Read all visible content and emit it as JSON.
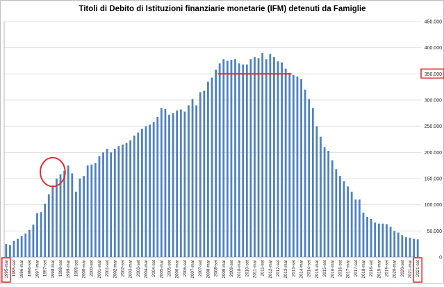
{
  "chart_data": {
    "type": "bar",
    "title": "Titoli di Debito di Istituzioni finanziarie monetarie (IFM)  detenuti da Famiglie",
    "xlabel": "",
    "ylabel": "",
    "ylim": [
      0,
      450000
    ],
    "yticks": [
      "0",
      "50.000",
      "100.000",
      "150.000",
      "200.000",
      "250.000",
      "300.000",
      "350.000",
      "400.000",
      "450.000"
    ],
    "ytick_values": [
      0,
      50000,
      100000,
      150000,
      200000,
      250000,
      300000,
      350000,
      400000,
      450000
    ],
    "grid": true,
    "bar_color": "#4f81bd",
    "annotation_color": "#e03030",
    "categories": [
      "1995-mar",
      "1995-giu",
      "1995-set",
      "1995-dic",
      "1996-mar",
      "1996-giu",
      "1996-set",
      "1996-dic",
      "1997-mar",
      "1997-giu",
      "1997-set",
      "1997-dic",
      "1998-mar",
      "1998-giu",
      "1998-set",
      "1998-dic",
      "1999-mar",
      "1999-giu",
      "1999-set",
      "1999-dic",
      "2000-mar",
      "2000-giu",
      "2000-set",
      "2000-dic",
      "2001-mar",
      "2001-giu",
      "2001-set",
      "2001-dic",
      "2002-mar",
      "2002-giu",
      "2002-set",
      "2002-dic",
      "2003-mar",
      "2003-giu",
      "2003-set",
      "2003-dic",
      "2004-mar",
      "2004-giu",
      "2004-set",
      "2004-dic",
      "2005-mar",
      "2005-giu",
      "2005-set",
      "2005-dic",
      "2006-mar",
      "2006-giu",
      "2006-set",
      "2006-dic",
      "2007-mar",
      "2007-giu",
      "2007-set",
      "2007-dic",
      "2008-mar",
      "2008-giu",
      "2008-set",
      "2008-dic",
      "2009-mar",
      "2009-giu",
      "2009-set",
      "2009-dic",
      "2010-mar",
      "2010-giu",
      "2010-set",
      "2010-dic",
      "2011-mar",
      "2011-giu",
      "2011-set",
      "2011-dic",
      "2012-mar",
      "2012-giu",
      "2012-set",
      "2012-dic",
      "2013-mar",
      "2013-giu",
      "2013-set",
      "2013-dic",
      "2014-mar",
      "2014-giu",
      "2014-set",
      "2014-dic",
      "2015-mar",
      "2015-giu",
      "2015-set",
      "2015-dic",
      "2016-mar",
      "2016-giu",
      "2016-set",
      "2016-dic",
      "2017-mar",
      "2017-giu",
      "2017-set",
      "2017-dic",
      "2018-mar",
      "2018-giu",
      "2018-set",
      "2018-dic",
      "2019-mar",
      "2019-giu",
      "2019-set",
      "2019-dic",
      "2020-mar",
      "2020-giu",
      "2020-set",
      "2020-dic",
      "2021-mar",
      "2021-giu",
      "2021-set"
    ],
    "xtick_labels": [
      "1995-mar",
      "1995-set",
      "1996-mar",
      "1996-set",
      "1997-mar",
      "1997-set",
      "1998-mar",
      "1998-set",
      "1999-mar",
      "1999-set",
      "2000-mar",
      "2000-set",
      "2001-mar",
      "2001-set",
      "2002-mar",
      "2002-set",
      "2003-mar",
      "2003-set",
      "2004-mar",
      "2004-set",
      "2005-mar",
      "2005-set",
      "2006-mar",
      "2006-set",
      "2007-mar",
      "2007-set",
      "2008-mar",
      "2008-set",
      "2009-mar",
      "2009-set",
      "2010-mar",
      "2010-set",
      "2011-mar",
      "2011-set",
      "2012-mar",
      "2012-set",
      "2013-mar",
      "2013-set",
      "2014-mar",
      "2014-set",
      "2015-mar",
      "2015-set",
      "2016-mar",
      "2016-set",
      "2017-mar",
      "2017-set",
      "2018-mar",
      "2018-set",
      "2019-mar",
      "2019-set",
      "2020-mar",
      "2020-set",
      "2021-mar",
      "2021-set"
    ],
    "values": [
      25000,
      23000,
      31000,
      35000,
      40000,
      45000,
      52000,
      62000,
      84000,
      86000,
      102000,
      120000,
      137000,
      150000,
      158000,
      165000,
      175000,
      160000,
      125000,
      150000,
      155000,
      175000,
      177000,
      180000,
      193000,
      200000,
      207000,
      200000,
      207000,
      212000,
      215000,
      218000,
      223000,
      232000,
      238000,
      245000,
      250000,
      253000,
      258000,
      268000,
      285000,
      283000,
      272000,
      275000,
      280000,
      282000,
      278000,
      290000,
      302000,
      290000,
      315000,
      318000,
      335000,
      343000,
      358000,
      370000,
      378000,
      375000,
      377000,
      378000,
      370000,
      368000,
      368000,
      378000,
      382000,
      380000,
      390000,
      378000,
      388000,
      382000,
      374000,
      372000,
      360000,
      352000,
      348000,
      345000,
      340000,
      320000,
      302000,
      285000,
      250000,
      230000,
      210000,
      203000,
      185000,
      168000,
      155000,
      145000,
      135000,
      125000,
      110000,
      110000,
      85000,
      77000,
      73000,
      66000,
      64000,
      64000,
      63000,
      58000,
      50000,
      47000,
      42000,
      38000,
      37000,
      35000,
      34000
    ],
    "annotations": {
      "hline": {
        "y": 350000,
        "x_from": "2008-dic",
        "x_to": "2013-giu"
      },
      "ellipse": {
        "center_x": "1998-mar",
        "y_from": 135000,
        "y_to": 190000
      },
      "boxed_xticks": [
        "1995-mar",
        "2021-set"
      ],
      "boxed_ytick": "350.000"
    }
  }
}
